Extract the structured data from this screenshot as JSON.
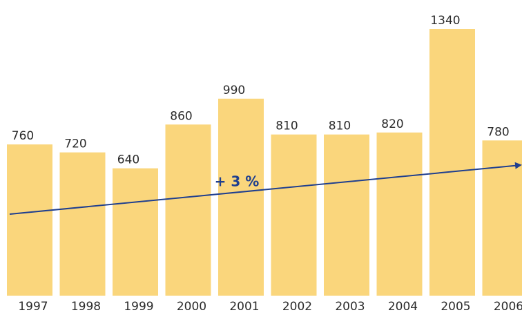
{
  "chart_data": {
    "type": "bar",
    "categories": [
      "1997",
      "1998",
      "1999",
      "2000",
      "2001",
      "2002",
      "2003",
      "2004",
      "2005",
      "2006"
    ],
    "values": [
      760,
      720,
      640,
      860,
      990,
      810,
      810,
      820,
      1340,
      780
    ],
    "color": "#fad67c",
    "annotation": "+ 3 %"
  }
}
